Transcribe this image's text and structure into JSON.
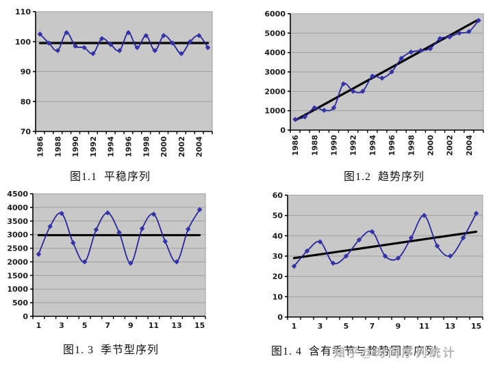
{
  "page": {
    "background": "#ffffff",
    "watermark": "知乎@时间序列统计"
  },
  "chart_data": [
    {
      "id": "fig-1-1",
      "type": "line",
      "caption": "图1.1  平稳序列",
      "x": [
        1986,
        1987,
        1988,
        1989,
        1990,
        1991,
        1992,
        1993,
        1994,
        1995,
        1996,
        1997,
        1998,
        1999,
        2000,
        2001,
        2002,
        2003,
        2004,
        2005
      ],
      "x_labels": [
        "1986",
        "",
        "1988",
        "",
        "1990",
        "",
        "1992",
        "",
        "1994",
        "",
        "1996",
        "",
        "1998",
        "",
        "2000",
        "",
        "2002",
        "",
        "2004",
        ""
      ],
      "x_labels_rotated": true,
      "values": [
        102.5,
        99.5,
        97,
        103,
        98.5,
        98,
        96,
        101,
        99,
        97,
        103,
        98,
        102,
        97,
        102,
        99.5,
        96,
        100,
        102,
        98
      ],
      "ylim": [
        70,
        110
      ],
      "yticks": [
        70,
        80,
        90,
        100,
        110
      ],
      "ref_line": {
        "label": "mean-line",
        "y_start": 99.5,
        "y_end": 99.5
      },
      "legend": "none",
      "grid": "horizontal",
      "colors": {
        "line": "#26269b",
        "marker": "#3434a8",
        "ref": "#000000",
        "plot_bg": "#c8c8c8",
        "grid": "#9e9e9e"
      }
    },
    {
      "id": "fig-1-2",
      "type": "line",
      "caption": "图1.2  趋势序列",
      "x": [
        1986,
        1987,
        1988,
        1989,
        1990,
        1991,
        1992,
        1993,
        1994,
        1995,
        1996,
        1997,
        1998,
        1999,
        2000,
        2001,
        2002,
        2003,
        2004,
        2005
      ],
      "x_labels": [
        "1986",
        "",
        "1988",
        "",
        "1990",
        "",
        "1992",
        "",
        "1994",
        "",
        "1996",
        "",
        "1998",
        "",
        "2000",
        "",
        "2002",
        "",
        "2004",
        ""
      ],
      "x_labels_rotated": true,
      "values": [
        550,
        680,
        1150,
        1020,
        1150,
        2380,
        2000,
        2000,
        2780,
        2680,
        3000,
        3700,
        4020,
        4100,
        4200,
        4720,
        4800,
        5000,
        5080,
        5650
      ],
      "ylim": [
        0,
        6000
      ],
      "yticks": [
        0,
        1000,
        2000,
        3000,
        4000,
        5000,
        6000
      ],
      "ref_line": {
        "label": "trend-line",
        "y_start": 500,
        "y_end": 5700
      },
      "legend": "none",
      "grid": "horizontal",
      "colors": {
        "line": "#26269b",
        "marker": "#3434a8",
        "ref": "#000000",
        "plot_bg": "#c8c8c8",
        "grid": "#9e9e9e"
      }
    },
    {
      "id": "fig-1-3",
      "type": "line",
      "caption": "图1. 3  季节型序列",
      "x": [
        1,
        2,
        3,
        4,
        5,
        6,
        7,
        8,
        9,
        10,
        11,
        12,
        13,
        14,
        15
      ],
      "x_labels": [
        "1",
        "",
        "3",
        "",
        "5",
        "",
        "7",
        "",
        "9",
        "",
        "11",
        "",
        "13",
        "",
        "15"
      ],
      "x_labels_rotated": false,
      "values": [
        2280,
        3300,
        3780,
        2700,
        2000,
        3180,
        3800,
        3080,
        1950,
        3220,
        3750,
        2750,
        2000,
        3200,
        3920
      ],
      "ylim": [
        0,
        4500
      ],
      "yticks": [
        0,
        500,
        1000,
        1500,
        2000,
        2500,
        3000,
        3500,
        4000,
        4500
      ],
      "ref_line": {
        "label": "mean-line",
        "y_start": 2980,
        "y_end": 2980
      },
      "legend": "none",
      "grid": "horizontal",
      "colors": {
        "line": "#26269b",
        "marker": "#3434a8",
        "ref": "#000000",
        "plot_bg": "#c8c8c8",
        "grid": "#9e9e9e"
      }
    },
    {
      "id": "fig-1-4",
      "type": "line",
      "caption": "图1. 4  含有季节与趋势因素序列",
      "x": [
        1,
        2,
        3,
        4,
        5,
        6,
        7,
        8,
        9,
        10,
        11,
        12,
        13,
        14,
        15
      ],
      "x_labels": [
        "1",
        "",
        "3",
        "",
        "5",
        "",
        "7",
        "",
        "9",
        "",
        "11",
        "",
        "13",
        "",
        "15"
      ],
      "x_labels_rotated": false,
      "values": [
        25,
        32.5,
        37,
        26.5,
        30,
        38,
        42,
        30,
        29,
        39,
        50,
        35,
        30,
        39,
        51
      ],
      "ylim": [
        0,
        60
      ],
      "yticks": [
        0,
        10,
        20,
        30,
        40,
        50,
        60
      ],
      "ref_line": {
        "label": "trend-line",
        "y_start": 29,
        "y_end": 42
      },
      "legend": "none",
      "grid": "horizontal",
      "colors": {
        "line": "#26269b",
        "marker": "#3434a8",
        "ref": "#000000",
        "plot_bg": "#c8c8c8",
        "grid": "#9e9e9e"
      }
    }
  ]
}
